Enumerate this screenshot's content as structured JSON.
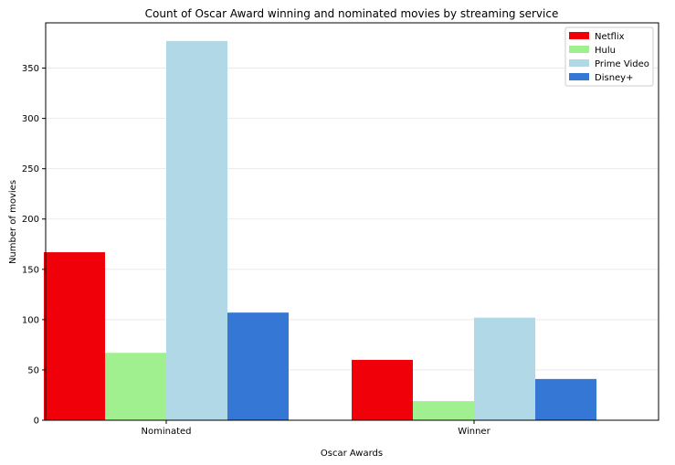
{
  "chart_data": {
    "type": "bar",
    "title": "Count of Oscar Award winning and nominated movies by streaming service",
    "xlabel": "Oscar Awards",
    "ylabel": "Number of movies",
    "categories": [
      "Nominated",
      "Winner"
    ],
    "series": [
      {
        "name": "Netflix",
        "color": "#f00008",
        "values": [
          167,
          60
        ]
      },
      {
        "name": "Hulu",
        "color": "#a0f090",
        "values": [
          67,
          19
        ]
      },
      {
        "name": "Prime Video",
        "color": "#b1d8e6",
        "values": [
          377,
          102
        ]
      },
      {
        "name": "Disney+",
        "color": "#3577d4",
        "values": [
          107,
          41
        ]
      }
    ],
    "yticks": [
      0,
      50,
      100,
      150,
      200,
      250,
      300,
      350
    ],
    "ylim": [
      0,
      395
    ],
    "grid": true,
    "legend": "top-right"
  }
}
